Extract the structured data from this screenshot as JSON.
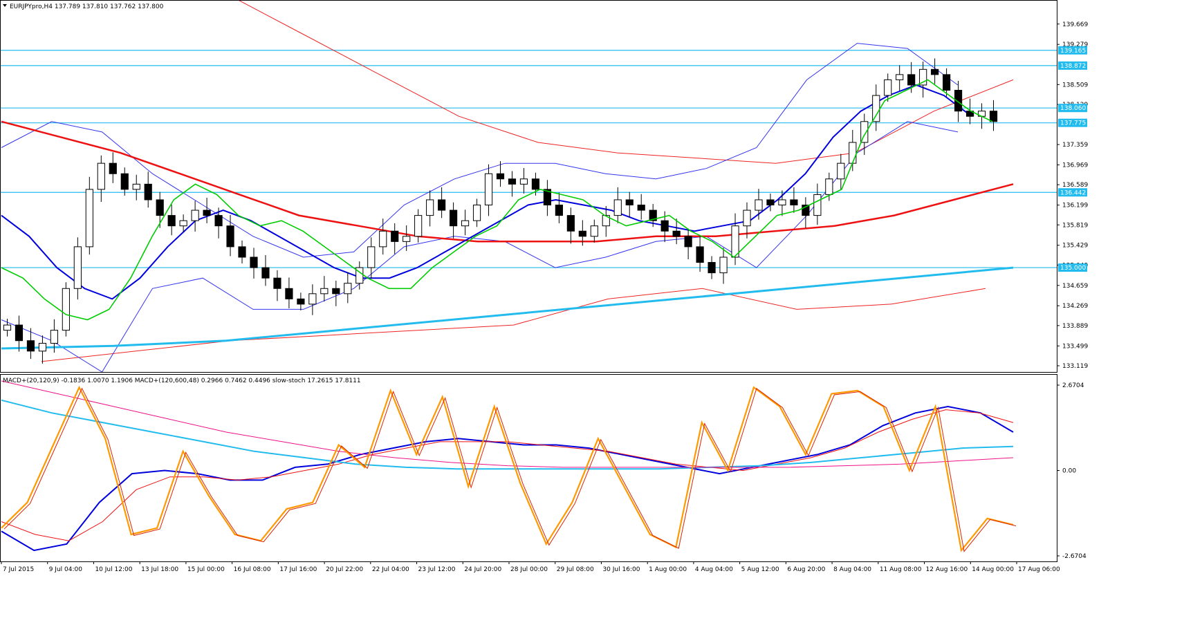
{
  "header": {
    "symbol": "EURJPYpro,H4",
    "ohlc": "137.789 137.810 137.762 137.800"
  },
  "indicator_header": "MACD+(20,120,9) -0.1836 1.0070 1.1906  MACD+(120,600,48) 0.2966 0.7462 0.4496  slow-stoch 17.2615 17.8111",
  "colors": {
    "background": "#ffffff",
    "bull_candle": "#ffffff",
    "bear_candle": "#000000",
    "ma_fast": "#00cc00",
    "ma_mid": "#0000dd",
    "ma_slow": "#ee1111",
    "ma_long": "#22bbee",
    "bands_blue": "#3333ee",
    "bands_red": "#ee2222",
    "level_lines": "#22bbee",
    "magenta": "#ee1188",
    "navy": "#3344bb",
    "green_marks": "#22aa44",
    "circles": "#ff8822",
    "stoch": "#ff9900",
    "stoch_signal": "#dd2200"
  },
  "chart_data": [
    {
      "type": "candlestick",
      "title": "",
      "price_axis_ticks": [
        "139.669",
        "139.279",
        "138.509",
        "138.129",
        "137.359",
        "136.969",
        "136.589",
        "136.199",
        "135.819",
        "135.429",
        "135.049",
        "134.659",
        "134.269",
        "133.889",
        "133.499",
        "133.119"
      ],
      "ylim": [
        133.0,
        140.05
      ],
      "time_axis_ticks": [
        "7 Jul 2015",
        "9 Jul 04:00",
        "10 Jul 12:00",
        "13 Jul 18:00",
        "15 Jul 00:00",
        "16 Jul 08:00",
        "17 Jul 16:00",
        "20 Jul 22:00",
        "22 Jul 04:00",
        "23 Jul 12:00",
        "24 Jul 20:00",
        "28 Jul 00:00",
        "29 Jul 08:00",
        "30 Jul 16:00",
        "1 Aug 00:00",
        "4 Aug 04:00",
        "5 Aug 12:00",
        "6 Aug 20:00",
        "8 Aug 04:00",
        "11 Aug 08:00",
        "12 Aug 16:00",
        "14 Aug 00:00",
        "17 Aug 06:00"
      ],
      "level_lines": [
        {
          "label": "139.165",
          "value": 139.165
        },
        {
          "label": "138.872",
          "value": 138.872
        },
        {
          "label": "138.060",
          "value": 138.06
        },
        {
          "label": "137.775",
          "value": 137.775
        },
        {
          "label": "136.442",
          "value": 136.442
        },
        {
          "label": "135.000",
          "value": 135.0
        }
      ],
      "close_path": [
        133.9,
        133.6,
        133.4,
        133.55,
        133.8,
        134.6,
        135.4,
        136.5,
        137.0,
        136.8,
        136.5,
        136.6,
        136.3,
        136.0,
        135.8,
        135.9,
        136.1,
        136.0,
        135.8,
        135.4,
        135.2,
        135.0,
        134.8,
        134.6,
        134.4,
        134.3,
        134.5,
        134.6,
        134.5,
        134.7,
        135.0,
        135.4,
        135.7,
        135.5,
        135.6,
        136.0,
        136.3,
        136.1,
        135.8,
        135.9,
        136.2,
        136.8,
        136.7,
        136.6,
        136.7,
        136.5,
        136.2,
        136.0,
        135.7,
        135.6,
        135.8,
        136.0,
        136.3,
        136.2,
        136.1,
        135.9,
        135.7,
        135.6,
        135.4,
        135.1,
        134.9,
        135.2,
        135.8,
        136.1,
        136.3,
        136.2,
        136.3,
        136.2,
        136.0,
        136.4,
        136.7,
        137.0,
        137.4,
        137.8,
        138.3,
        138.6,
        138.7,
        138.5,
        138.8,
        138.7,
        138.4,
        138.0,
        137.9,
        138.0,
        137.8
      ],
      "ma_fast": [
        135.0,
        134.8,
        134.4,
        134.1,
        134.0,
        134.2,
        134.8,
        135.6,
        136.3,
        136.6,
        136.4,
        136.0,
        135.8,
        135.9,
        135.7,
        135.4,
        135.1,
        134.8,
        134.6,
        134.6,
        135.0,
        135.3,
        135.6,
        135.8,
        136.3,
        136.5,
        136.4,
        136.3,
        136.0,
        135.8,
        135.9,
        136.0,
        135.7,
        135.5,
        135.2,
        135.6,
        136.0,
        136.1,
        136.3,
        136.5,
        137.5,
        138.2,
        138.4,
        138.6,
        138.3,
        138.0,
        137.8
      ],
      "ma_mid": [
        136.0,
        135.6,
        135.0,
        134.6,
        134.4,
        134.8,
        135.4,
        135.9,
        136.1,
        135.9,
        135.6,
        135.3,
        135.0,
        134.8,
        134.8,
        135.0,
        135.3,
        135.6,
        135.9,
        136.2,
        136.3,
        136.2,
        136.1,
        135.9,
        135.8,
        135.7,
        135.8,
        135.9,
        136.3,
        136.8,
        137.5,
        138.0,
        138.3,
        138.5,
        138.3,
        137.9
      ],
      "ma_slow": [
        137.8,
        137.5,
        137.2,
        136.8,
        136.4,
        136.0,
        135.8,
        135.6,
        135.5,
        135.5,
        135.5,
        135.6,
        135.6,
        135.7,
        135.8,
        136.0,
        136.3,
        136.6
      ],
      "ma_long": [
        133.45,
        133.5,
        133.6,
        133.8,
        134.0,
        134.2,
        134.4,
        134.6,
        134.8,
        135.0
      ],
      "bands_upper": [
        137.3,
        137.8,
        137.6,
        136.8,
        136.2,
        135.6,
        135.2,
        135.3,
        136.2,
        136.7,
        137.0,
        137.0,
        136.8,
        136.7,
        136.9,
        137.3,
        138.6,
        139.3,
        139.2,
        138.5
      ],
      "bands_lower": [
        134.0,
        133.6,
        133.0,
        134.6,
        134.8,
        134.2,
        134.2,
        134.6,
        135.4,
        135.6,
        135.5,
        135.0,
        135.2,
        135.5,
        135.6,
        135.0,
        136.0,
        137.2,
        137.8,
        137.6
      ],
      "envelope_upper": [
        140.3,
        139.5,
        138.7,
        137.9,
        137.4,
        137.2,
        137.1,
        137.0,
        137.2,
        138.0,
        138.6
      ],
      "envelope_lower": [
        133.2,
        133.4,
        133.6,
        133.7,
        133.8,
        133.9,
        134.4,
        134.6,
        134.2,
        134.3,
        134.6
      ]
    },
    {
      "type": "line",
      "title": "",
      "axis_ticks": [
        "2.6704",
        "0.00",
        "-2.6704"
      ],
      "ylim": [
        -2.6704,
        2.6704
      ],
      "series": [
        {
          "values": [
            -1.9,
            -2.5,
            -2.3,
            -1.0,
            -0.1,
            0.0,
            -0.1,
            -0.3,
            -0.3,
            0.1,
            0.2,
            0.5,
            0.7,
            0.9,
            1.0,
            0.9,
            0.8,
            0.8,
            0.7,
            0.5,
            0.3,
            0.1,
            -0.1,
            0.1,
            0.3,
            0.5,
            0.8,
            1.4,
            1.8,
            2.0,
            1.8,
            1.2
          ]
        },
        {
          "values": [
            -1.6,
            -2.0,
            -2.2,
            -1.6,
            -0.6,
            -0.2,
            -0.2,
            -0.3,
            -0.2,
            0.0,
            0.2,
            0.5,
            0.7,
            0.9,
            0.9,
            0.9,
            0.8,
            0.7,
            0.6,
            0.4,
            0.2,
            0.1,
            0.0,
            0.2,
            0.4,
            0.7,
            1.2,
            1.6,
            1.9,
            1.8,
            1.5
          ]
        },
        {
          "values": [
            2.2,
            1.8,
            1.5,
            1.2,
            0.9,
            0.6,
            0.4,
            0.2,
            0.1,
            0.05,
            0.05,
            0.05,
            0.05,
            0.05,
            0.1,
            0.15,
            0.25,
            0.4,
            0.55,
            0.7,
            0.75
          ]
        },
        {
          "values": [
            2.8,
            2.4,
            2.0,
            1.6,
            1.2,
            0.9,
            0.6,
            0.4,
            0.25,
            0.15,
            0.1,
            0.1,
            0.1,
            0.1,
            0.1,
            0.15,
            0.2,
            0.3,
            0.4
          ]
        },
        {
          "values": [
            -1.8,
            -1.0,
            0.8,
            2.6,
            1.0,
            -2.0,
            -1.8,
            0.6,
            -0.8,
            -2.0,
            -2.2,
            -1.2,
            -1.0,
            0.8,
            0.1,
            2.5,
            0.5,
            2.3,
            -0.5,
            2.0,
            -0.4,
            -2.3,
            -1.0,
            1.0,
            -0.5,
            -2.0,
            -2.4,
            1.5,
            0.0,
            2.6,
            2.0,
            0.5,
            2.4,
            2.5,
            2.0,
            0.0,
            2.0,
            -2.5,
            -1.5,
            -1.7
          ]
        }
      ]
    }
  ]
}
